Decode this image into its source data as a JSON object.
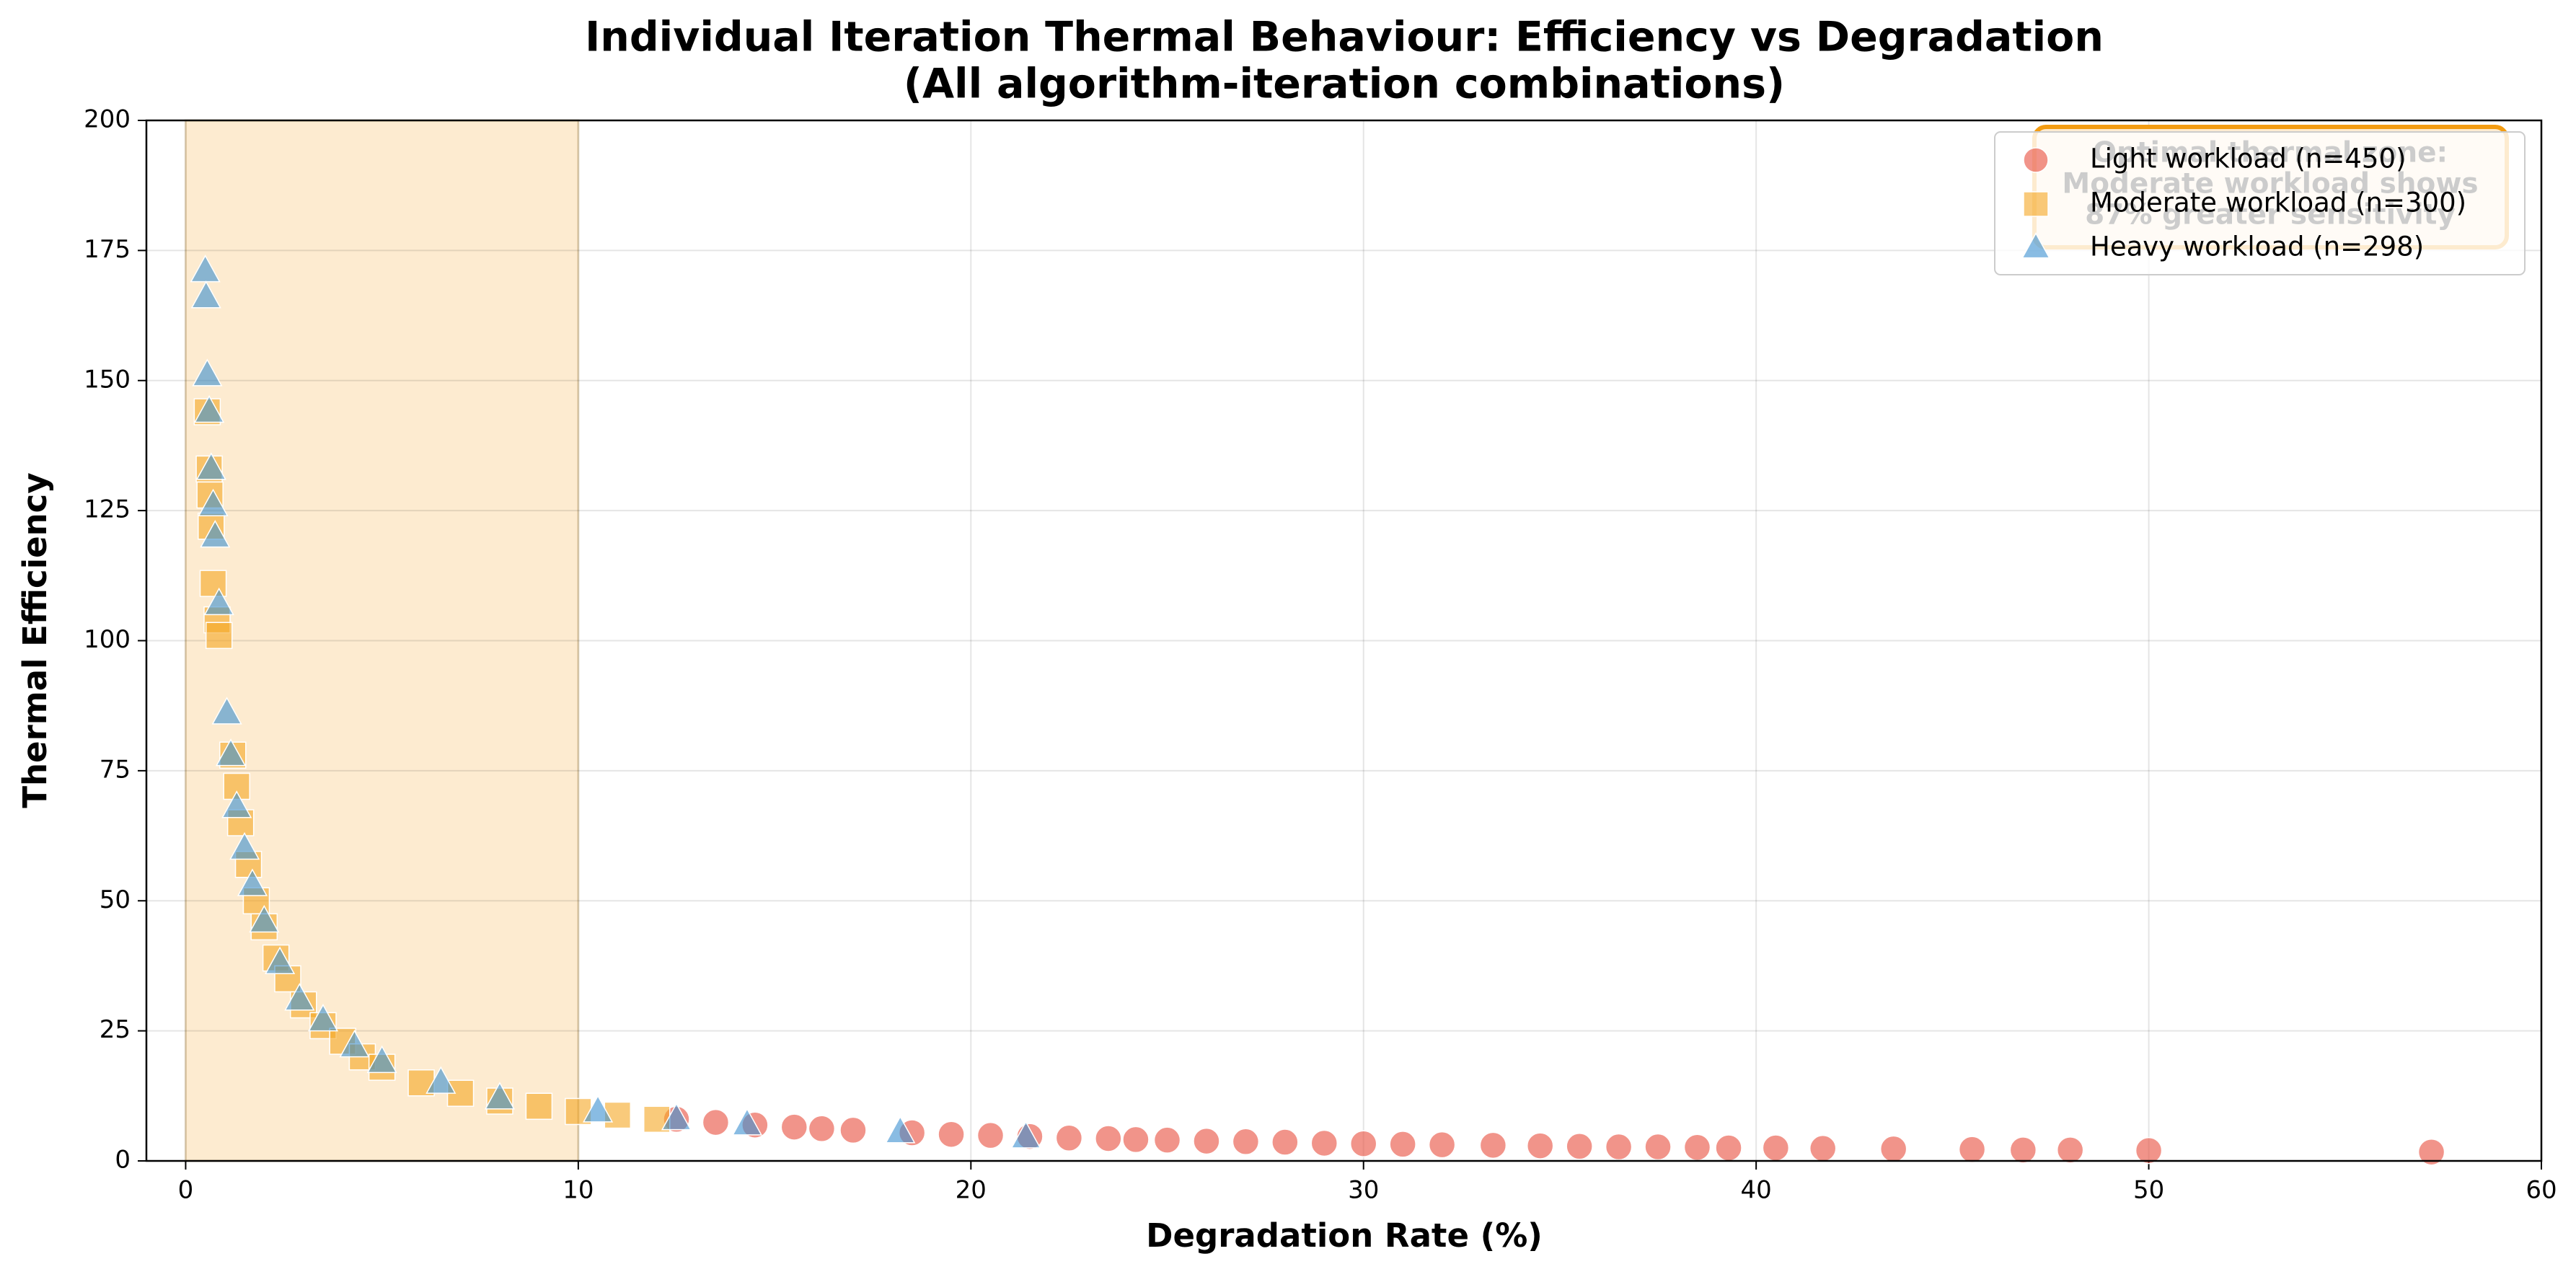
{
  "chart_data": {
    "type": "scatter",
    "title": "Individual Iteration Thermal Behaviour: Efficiency vs Degradation",
    "subtitle": "(All algorithm-iteration combinations)",
    "x_label": "Degradation Rate (%)",
    "y_label": "Thermal Efficiency",
    "xlim": [
      -1,
      60
    ],
    "ylim": [
      0,
      200
    ],
    "xticks": [
      0,
      10,
      20,
      30,
      40,
      50,
      60
    ],
    "yticks": [
      0,
      25,
      50,
      75,
      100,
      125,
      150,
      175,
      200
    ],
    "grid": true,
    "legend": "upper right",
    "shaded_region": {
      "x": [
        0,
        10
      ],
      "color": "#fdebd0"
    },
    "annotation": {
      "lines": [
        "Optimal thermal zone:",
        "Moderate workload shows",
        "87% greater sensitivity"
      ],
      "color": "#f39c12"
    },
    "series": [
      {
        "name": "Light workload (n=450)",
        "color": "#e74c3c",
        "marker": "circle",
        "x": [
          12.5,
          13.5,
          14.5,
          15.5,
          16.2,
          17,
          18.5,
          19.5,
          20.5,
          21.5,
          22.5,
          23.5,
          24.2,
          25,
          26,
          27,
          28,
          29,
          30,
          31,
          32,
          33.3,
          34.5,
          35.5,
          36.5,
          37.5,
          38.5,
          39.3,
          40.5,
          41.7,
          43.5,
          45.5,
          46.8,
          48,
          50,
          57.2
        ],
        "values": [
          8,
          7.4,
          6.9,
          6.5,
          6.2,
          5.9,
          5.4,
          5.1,
          4.9,
          4.7,
          4.4,
          4.3,
          4.1,
          4,
          3.8,
          3.7,
          3.6,
          3.4,
          3.3,
          3.2,
          3.1,
          3,
          2.9,
          2.8,
          2.7,
          2.7,
          2.6,
          2.5,
          2.5,
          2.4,
          2.3,
          2.2,
          2.1,
          2.1,
          2,
          1.7
        ]
      },
      {
        "name": "Moderate workload (n=300)",
        "color": "#f5a623",
        "marker": "square",
        "x": [
          0.55,
          0.6,
          0.62,
          0.65,
          0.7,
          0.8,
          0.85,
          1.2,
          1.3,
          1.4,
          1.6,
          1.8,
          2,
          2.3,
          2.6,
          3,
          3.5,
          4,
          4.5,
          5,
          6,
          7,
          8,
          9,
          10,
          11,
          12
        ],
        "values": [
          144,
          133,
          128,
          122,
          111,
          104,
          101,
          78,
          72,
          65,
          57,
          50,
          45,
          39,
          35,
          30,
          26,
          23,
          20,
          18,
          15,
          13,
          11.5,
          10.5,
          9.5,
          8.8,
          8
        ]
      },
      {
        "name": "Heavy workload (n=298)",
        "color": "#3a8fd0",
        "marker": "triangle",
        "x": [
          0.5,
          0.52,
          0.55,
          0.6,
          0.65,
          0.7,
          0.75,
          0.85,
          1.05,
          1.15,
          1.3,
          1.5,
          1.7,
          2,
          2.4,
          2.9,
          3.5,
          4.3,
          5,
          6.5,
          8,
          10.5,
          12.5,
          14.3,
          18.2,
          21.4
        ],
        "values": [
          171,
          166,
          151,
          144,
          133,
          126,
          120,
          107,
          86,
          78,
          68,
          60,
          53,
          46,
          38,
          31,
          27,
          22,
          19,
          15,
          12,
          9.5,
          8,
          7,
          5.5,
          4.5
        ]
      }
    ]
  }
}
